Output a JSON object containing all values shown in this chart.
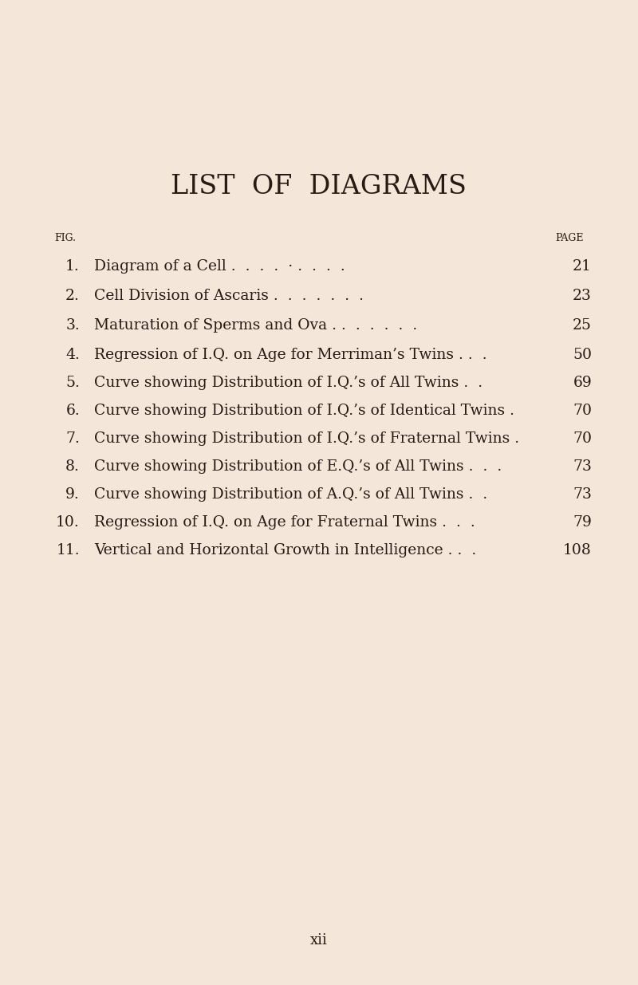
{
  "background_color": "#f4e6d8",
  "text_color": "#2a1a14",
  "title": "LIST  OF  DIAGRAMS",
  "title_fontsize": 24,
  "fig_label": "FIG.",
  "page_label": "PAGE",
  "header_fontsize": 9,
  "entry_fontsize": 13.5,
  "footer_text": "xii",
  "footer_fontsize": 13,
  "entries": [
    {
      "num": "1.",
      "text": "Diagram of a Cell",
      "trailing_dots": " .  .  .  .  · .  .  .  .",
      "page": "21"
    },
    {
      "num": "2.",
      "text": "Cell Division of Ascaris",
      "trailing_dots": " .  .  .  .  .  .  .",
      "page": "23"
    },
    {
      "num": "3.",
      "text": "Maturation of Sperms and Ova .",
      "trailing_dots": " .  .  .  .  .  .",
      "page": "25"
    },
    {
      "num": "4.",
      "text": "Regression of I.Q. on Age for Merriman’s Twins .",
      "trailing_dots": " .  .",
      "page": "50"
    },
    {
      "num": "5.",
      "text": "Curve showing Distribution of I.Q.’s of All Twins",
      "trailing_dots": " .  .",
      "page": "69"
    },
    {
      "num": "6.",
      "text": "Curve showing Distribution of I.Q.’s of Identical Twins",
      "trailing_dots": " .",
      "page": "70"
    },
    {
      "num": "7.",
      "text": "Curve showing Distribution of I.Q.’s of Fraternal Twins",
      "trailing_dots": " .",
      "page": "70"
    },
    {
      "num": "8.",
      "text": "Curve showing Distribution of E.Q.’s of All Twins",
      "trailing_dots": " .  .  .",
      "page": "73"
    },
    {
      "num": "9.",
      "text": "Curve showing Distribution of A.Q.’s of All Twins",
      "trailing_dots": " .  .",
      "page": "73"
    },
    {
      "num": "10.",
      "text": "Regression of I.Q. on Age for Fraternal Twins",
      "trailing_dots": " .  .  .",
      "page": "79"
    },
    {
      "num": "11.",
      "text": "Vertical and Horizontal Growth in Intelligence .",
      "trailing_dots": " .  .",
      "page": "108"
    }
  ]
}
